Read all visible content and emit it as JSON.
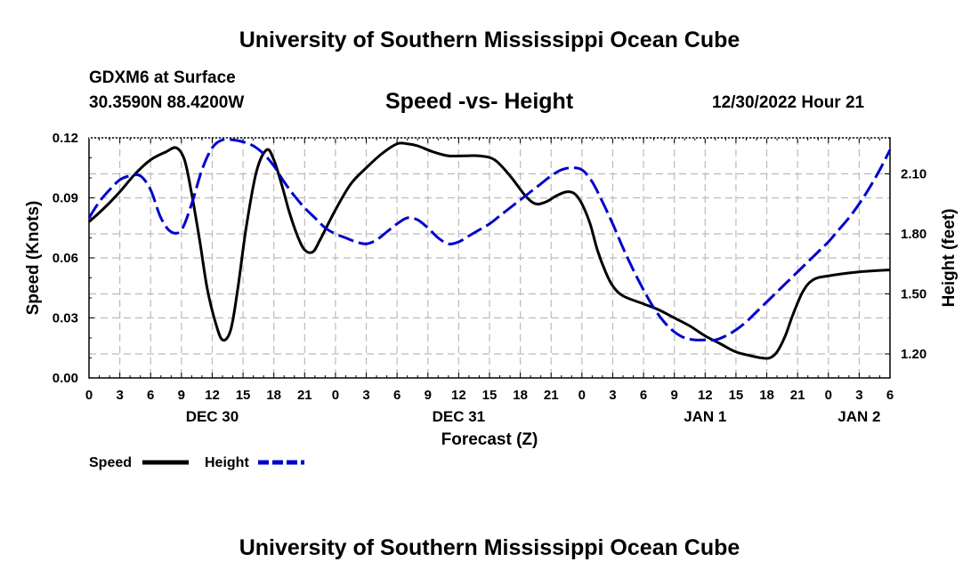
{
  "header": {
    "title": "University of Southern Mississippi Ocean Cube",
    "station": "GDXM6 at Surface",
    "coords": "30.3590N  88.4200W",
    "subtitle": "Speed -vs- Height",
    "timestamp": "12/30/2022 Hour 21"
  },
  "footer": {
    "title": "University of Southern Mississippi Ocean Cube"
  },
  "chart_data": {
    "type": "line",
    "title": "Speed -vs- Height",
    "xlabel": "Forecast (Z)",
    "ylabel": "Speed (Knots)",
    "y2label": "Height (feet)",
    "x_unit": "forecast hours from DEC 30 00Z",
    "xlim": [
      0,
      78
    ],
    "ylim": [
      0,
      0.12
    ],
    "y2lim": [
      1.08,
      2.28
    ],
    "x_ticks": [
      0,
      3,
      6,
      9,
      12,
      15,
      18,
      21,
      24,
      27,
      30,
      33,
      36,
      39,
      42,
      45,
      48,
      51,
      54,
      57,
      60,
      63,
      66,
      69,
      72,
      75,
      78
    ],
    "x_tick_labels": [
      "0",
      "3",
      "6",
      "9",
      "12",
      "15",
      "18",
      "21",
      "0",
      "3",
      "6",
      "9",
      "12",
      "15",
      "18",
      "21",
      "0",
      "3",
      "6",
      "9",
      "12",
      "15",
      "18",
      "21",
      "0",
      "3",
      "6"
    ],
    "date_labels": [
      {
        "x": 12,
        "label": "DEC 30"
      },
      {
        "x": 36,
        "label": "DEC 31"
      },
      {
        "x": 60,
        "label": "JAN 1"
      },
      {
        "x": 75,
        "label": "JAN 2"
      }
    ],
    "y_ticks": [
      0,
      0.03,
      0.06,
      0.09,
      0.12
    ],
    "y_tick_labels": [
      "0.00",
      "0.03",
      "0.06",
      "0.09",
      "0.12"
    ],
    "y2_ticks": [
      1.2,
      1.5,
      1.8,
      2.1
    ],
    "y2_tick_labels": [
      "1.20",
      "1.50",
      "1.80",
      "2.10"
    ],
    "grid": true,
    "legend": {
      "position": "bottom-left",
      "entries": [
        {
          "label": "Speed",
          "color": "#000000",
          "style": "solid"
        },
        {
          "label": "Height",
          "color": "#0000cc",
          "style": "dashed"
        }
      ]
    },
    "series": [
      {
        "name": "Speed",
        "axis": "left",
        "color": "#000000",
        "style": "solid",
        "points": [
          [
            0,
            0.078
          ],
          [
            1.5,
            0.085
          ],
          [
            3,
            0.093
          ],
          [
            4.5,
            0.102
          ],
          [
            6,
            0.109
          ],
          [
            7.5,
            0.113
          ],
          [
            8.5,
            0.115
          ],
          [
            9.3,
            0.109
          ],
          [
            10,
            0.092
          ],
          [
            10.8,
            0.068
          ],
          [
            11.5,
            0.045
          ],
          [
            12.3,
            0.028
          ],
          [
            13,
            0.019
          ],
          [
            13.8,
            0.024
          ],
          [
            14.5,
            0.045
          ],
          [
            15.3,
            0.075
          ],
          [
            16.3,
            0.103
          ],
          [
            17.3,
            0.114
          ],
          [
            18,
            0.109
          ],
          [
            18.8,
            0.096
          ],
          [
            19.5,
            0.083
          ],
          [
            20.3,
            0.071
          ],
          [
            21,
            0.064
          ],
          [
            21.8,
            0.063
          ],
          [
            22.5,
            0.069
          ],
          [
            24,
            0.084
          ],
          [
            25.5,
            0.097
          ],
          [
            27,
            0.105
          ],
          [
            28.5,
            0.112
          ],
          [
            30,
            0.117
          ],
          [
            31,
            0.117
          ],
          [
            32,
            0.116
          ],
          [
            33.5,
            0.113
          ],
          [
            35,
            0.111
          ],
          [
            36.5,
            0.111
          ],
          [
            38,
            0.111
          ],
          [
            39.5,
            0.109
          ],
          [
            41,
            0.101
          ],
          [
            42.5,
            0.091
          ],
          [
            43.5,
            0.087
          ],
          [
            44.5,
            0.088
          ],
          [
            45.5,
            0.091
          ],
          [
            46.5,
            0.093
          ],
          [
            47.3,
            0.092
          ],
          [
            48,
            0.087
          ],
          [
            48.8,
            0.077
          ],
          [
            49.5,
            0.064
          ],
          [
            50.3,
            0.053
          ],
          [
            51,
            0.046
          ],
          [
            52,
            0.041
          ],
          [
            54,
            0.037
          ],
          [
            55.5,
            0.034
          ],
          [
            57,
            0.03
          ],
          [
            58.5,
            0.026
          ],
          [
            60,
            0.021
          ],
          [
            61.5,
            0.017
          ],
          [
            63,
            0.013
          ],
          [
            64.5,
            0.011
          ],
          [
            65.5,
            0.01
          ],
          [
            66.3,
            0.01
          ],
          [
            67,
            0.013
          ],
          [
            67.8,
            0.021
          ],
          [
            68.5,
            0.031
          ],
          [
            69.5,
            0.043
          ],
          [
            70.5,
            0.049
          ],
          [
            72,
            0.051
          ],
          [
            75,
            0.053
          ],
          [
            78,
            0.054
          ]
        ]
      },
      {
        "name": "Height",
        "axis": "right",
        "color": "#0000cc",
        "style": "dashed",
        "points": [
          [
            0,
            1.88
          ],
          [
            1,
            1.96
          ],
          [
            2,
            2.02
          ],
          [
            3,
            2.07
          ],
          [
            4,
            2.09
          ],
          [
            5,
            2.09
          ],
          [
            6,
            2.02
          ],
          [
            7,
            1.88
          ],
          [
            8,
            1.81
          ],
          [
            9,
            1.82
          ],
          [
            10,
            1.95
          ],
          [
            11,
            2.12
          ],
          [
            12,
            2.23
          ],
          [
            13,
            2.27
          ],
          [
            14,
            2.27
          ],
          [
            15,
            2.26
          ],
          [
            16,
            2.24
          ],
          [
            17,
            2.2
          ],
          [
            18,
            2.14
          ],
          [
            19,
            2.06
          ],
          [
            20,
            1.99
          ],
          [
            21,
            1.93
          ],
          [
            22,
            1.88
          ],
          [
            23,
            1.83
          ],
          [
            24,
            1.8
          ],
          [
            25,
            1.78
          ],
          [
            26,
            1.76
          ],
          [
            27,
            1.75
          ],
          [
            28,
            1.77
          ],
          [
            29,
            1.81
          ],
          [
            30,
            1.85
          ],
          [
            31,
            1.88
          ],
          [
            32,
            1.87
          ],
          [
            33,
            1.83
          ],
          [
            34,
            1.78
          ],
          [
            35,
            1.75
          ],
          [
            36,
            1.76
          ],
          [
            37,
            1.79
          ],
          [
            38,
            1.82
          ],
          [
            39,
            1.85
          ],
          [
            40,
            1.89
          ],
          [
            41,
            1.93
          ],
          [
            42,
            1.97
          ],
          [
            43,
            2.01
          ],
          [
            44,
            2.05
          ],
          [
            45,
            2.09
          ],
          [
            46,
            2.12
          ],
          [
            47,
            2.13
          ],
          [
            48,
            2.12
          ],
          [
            49,
            2.06
          ],
          [
            50,
            1.96
          ],
          [
            51,
            1.85
          ],
          [
            52,
            1.73
          ],
          [
            53,
            1.62
          ],
          [
            54,
            1.52
          ],
          [
            55,
            1.43
          ],
          [
            56,
            1.36
          ],
          [
            57,
            1.31
          ],
          [
            58,
            1.28
          ],
          [
            59,
            1.27
          ],
          [
            60,
            1.27
          ],
          [
            61,
            1.27
          ],
          [
            62,
            1.29
          ],
          [
            63,
            1.32
          ],
          [
            64,
            1.36
          ],
          [
            65,
            1.41
          ],
          [
            66,
            1.46
          ],
          [
            67,
            1.51
          ],
          [
            68,
            1.56
          ],
          [
            69,
            1.61
          ],
          [
            70,
            1.66
          ],
          [
            71,
            1.71
          ],
          [
            72,
            1.76
          ],
          [
            73,
            1.82
          ],
          [
            74,
            1.88
          ],
          [
            75,
            1.95
          ],
          [
            76,
            2.03
          ],
          [
            77,
            2.12
          ],
          [
            78,
            2.22
          ]
        ]
      }
    ]
  }
}
